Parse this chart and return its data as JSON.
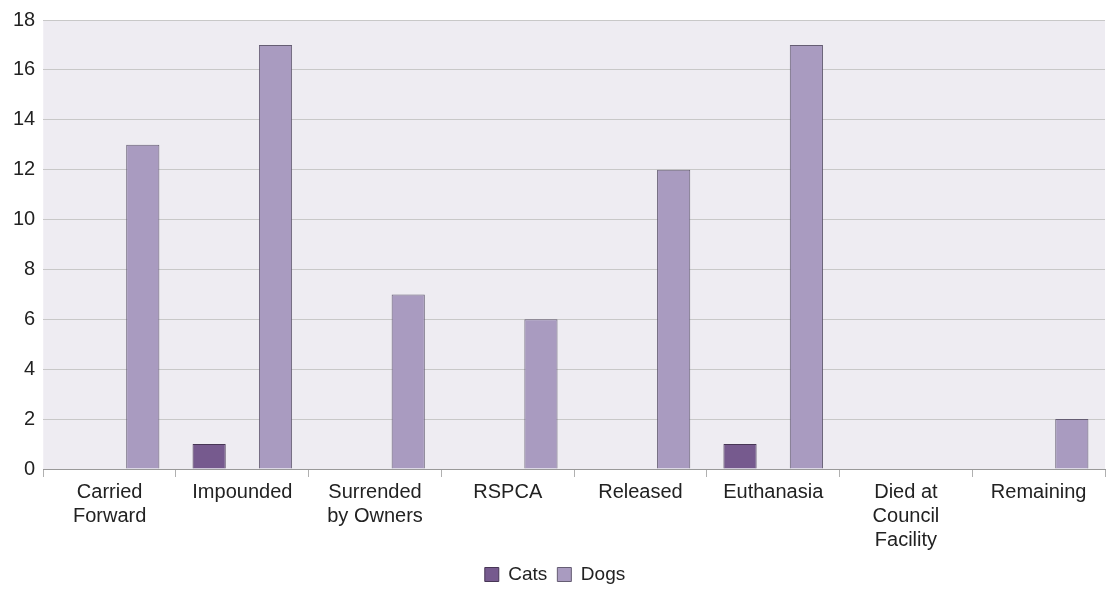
{
  "chart_data": {
    "type": "bar",
    "categories": [
      "Carried Forward",
      "Impounded",
      "Surrended by Owners",
      "RSPCA",
      "Released",
      "Euthanasia",
      "Died at Council Facility",
      "Remaining"
    ],
    "series": [
      {
        "name": "Cats",
        "color": "#765a8e",
        "values": [
          0,
          1,
          0,
          0,
          0,
          1,
          0,
          0
        ]
      },
      {
        "name": "Dogs",
        "color": "#a99bc0",
        "values": [
          13,
          17,
          7,
          6,
          12,
          17,
          0,
          2
        ]
      }
    ],
    "ylim": [
      0,
      18
    ],
    "yticks": [
      0,
      2,
      4,
      6,
      8,
      10,
      12,
      14,
      16,
      18
    ],
    "grid": "y",
    "legend": "bottom"
  }
}
